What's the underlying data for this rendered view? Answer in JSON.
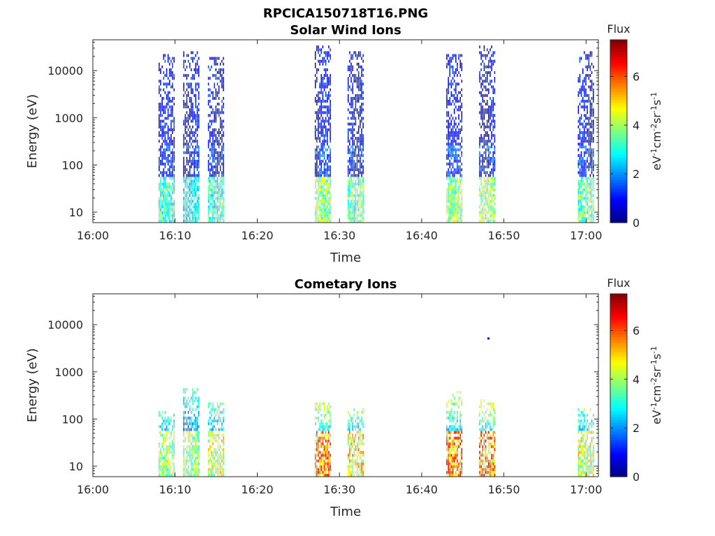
{
  "figure_title": "RPCICA150718T16.PNG",
  "colors": {
    "axis": "#262626",
    "background": "#ffffff",
    "colormap": "jet"
  },
  "chart_data": [
    {
      "type": "heatmap",
      "title": "Solar Wind Ions",
      "xlabel": "Time",
      "ylabel": "Energy (eV)",
      "x_ticks": [
        "16:00",
        "16:10",
        "16:20",
        "16:30",
        "16:40",
        "16:50",
        "17:00"
      ],
      "x_range_minutes": [
        0,
        61.5
      ],
      "y_ticks": [
        "10",
        "100",
        "1000",
        "10000"
      ],
      "y_range_eV": [
        6,
        45000
      ],
      "y_scale": "log",
      "colorbar": {
        "title": "Flux",
        "label": "eV-1cm-2sr-1s-1",
        "ticks": [
          "0",
          "2",
          "4",
          "6"
        ],
        "range": [
          0,
          7.5
        ]
      },
      "bursts": [
        {
          "start": "16:08",
          "end": "16:10",
          "upper_energy_eV": 20000,
          "peak_flux": 4.0
        },
        {
          "start": "16:11",
          "end": "16:13",
          "upper_energy_eV": 25000,
          "peak_flux": 3.5
        },
        {
          "start": "16:14",
          "end": "16:16",
          "upper_energy_eV": 18000,
          "peak_flux": 4.0
        },
        {
          "start": "16:27",
          "end": "16:29",
          "upper_energy_eV": 30000,
          "peak_flux": 5.0
        },
        {
          "start": "16:31",
          "end": "16:33",
          "upper_energy_eV": 25000,
          "peak_flux": 4.5
        },
        {
          "start": "16:43",
          "end": "16:45",
          "upper_energy_eV": 20000,
          "peak_flux": 5.0
        },
        {
          "start": "16:47",
          "end": "16:49",
          "upper_energy_eV": 30000,
          "peak_flux": 5.0
        },
        {
          "start": "16:59",
          "end": "17:01",
          "upper_energy_eV": 25000,
          "peak_flux": 4.5
        }
      ]
    },
    {
      "type": "heatmap",
      "title": "Cometary Ions",
      "xlabel": "Time",
      "ylabel": "Energy (eV)",
      "x_ticks": [
        "16:00",
        "16:10",
        "16:20",
        "16:30",
        "16:40",
        "16:50",
        "17:00"
      ],
      "x_range_minutes": [
        0,
        61.5
      ],
      "y_ticks": [
        "10",
        "100",
        "1000",
        "10000"
      ],
      "y_range_eV": [
        6,
        45000
      ],
      "y_scale": "log",
      "colorbar": {
        "title": "Flux",
        "label": "eV-1cm-2sr-1s-1",
        "ticks": [
          "0",
          "2",
          "4",
          "6"
        ],
        "range": [
          0,
          7.5
        ]
      },
      "bursts": [
        {
          "start": "16:08",
          "end": "16:10",
          "upper_energy_eV": 130,
          "peak_flux": 5.0
        },
        {
          "start": "16:11",
          "end": "16:13",
          "upper_energy_eV": 400,
          "peak_flux": 5.0
        },
        {
          "start": "16:14",
          "end": "16:16",
          "upper_energy_eV": 200,
          "peak_flux": 5.5
        },
        {
          "start": "16:27",
          "end": "16:29",
          "upper_energy_eV": 200,
          "peak_flux": 7.0
        },
        {
          "start": "16:31",
          "end": "16:33",
          "upper_energy_eV": 150,
          "peak_flux": 6.0
        },
        {
          "start": "16:43",
          "end": "16:45",
          "upper_energy_eV": 350,
          "peak_flux": 7.0
        },
        {
          "start": "16:47",
          "end": "16:49",
          "upper_energy_eV": 230,
          "peak_flux": 7.0
        },
        {
          "start": "16:59",
          "end": "17:01",
          "upper_energy_eV": 150,
          "peak_flux": 5.5
        }
      ],
      "isolated_points": [
        {
          "time": "16:48",
          "energy_eV": 5000,
          "flux": 0.5
        }
      ]
    }
  ]
}
